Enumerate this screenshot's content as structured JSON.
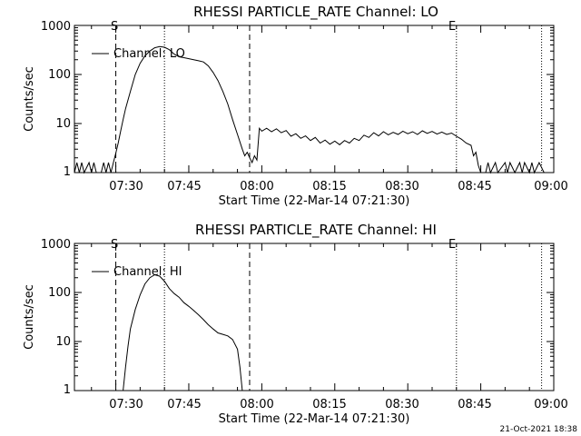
{
  "chart_data": [
    {
      "type": "line",
      "title": "RHESSI PARTICLE_RATE Channel: LO",
      "xlabel": "Start Time (22-Mar-14 07:21:30)",
      "ylabel": "Counts/sec",
      "y_scale": "log",
      "ylim": [
        1,
        1000
      ],
      "xlim": [
        "07:21:30",
        "09:00:00"
      ],
      "x_tick_labels": [
        "07:30",
        "07:45",
        "08:00",
        "08:15",
        "08:30",
        "08:45",
        "09:00"
      ],
      "y_tick_labels": [
        "1",
        "10",
        "100",
        "1000"
      ],
      "legend": {
        "label": "Channel: LO",
        "position": "top-left"
      },
      "markers": [
        {
          "time": "07:30:00",
          "style": "dashed",
          "label": "S"
        },
        {
          "time": "07:40:00",
          "style": "dotted",
          "label": ""
        },
        {
          "time": "07:57:30",
          "style": "dashed",
          "label": ""
        },
        {
          "time": "08:40:00",
          "style": "dotted",
          "label": "E"
        },
        {
          "time": "08:57:30",
          "style": "dotted",
          "label": ""
        }
      ],
      "series": [
        {
          "name": "Channel: LO",
          "points": [
            [
              "07:21:30",
              1
            ],
            [
              "07:22:00",
              1.6
            ],
            [
              "07:22:30",
              1
            ],
            [
              "07:23:00",
              1.6
            ],
            [
              "07:23:30",
              1
            ],
            [
              "07:24:30",
              1.6
            ],
            [
              "07:25:00",
              1
            ],
            [
              "07:25:30",
              1.6
            ],
            [
              "07:26:00",
              1
            ],
            [
              "07:27:00",
              1
            ],
            [
              "07:27:30",
              1.6
            ],
            [
              "07:28:00",
              1
            ],
            [
              "07:28:30",
              1.6
            ],
            [
              "07:29:00",
              1
            ],
            [
              "07:29:30",
              1.6
            ],
            [
              "07:30:00",
              2.5
            ],
            [
              "07:30:30",
              4
            ],
            [
              "07:31:00",
              7
            ],
            [
              "07:31:30",
              12
            ],
            [
              "07:32:00",
              20
            ],
            [
              "07:33:00",
              45
            ],
            [
              "07:34:00",
              100
            ],
            [
              "07:35:00",
              170
            ],
            [
              "07:36:00",
              240
            ],
            [
              "07:37:00",
              300
            ],
            [
              "07:38:00",
              350
            ],
            [
              "07:39:00",
              370
            ],
            [
              "07:40:00",
              360
            ],
            [
              "07:41:00",
              320
            ],
            [
              "07:42:00",
              260
            ],
            [
              "07:43:00",
              230
            ],
            [
              "07:44:00",
              220
            ],
            [
              "07:45:00",
              210
            ],
            [
              "07:46:00",
              200
            ],
            [
              "07:47:00",
              190
            ],
            [
              "07:48:00",
              180
            ],
            [
              "07:49:00",
              150
            ],
            [
              "07:50:00",
              110
            ],
            [
              "07:51:00",
              75
            ],
            [
              "07:52:00",
              45
            ],
            [
              "07:53:00",
              25
            ],
            [
              "07:54:00",
              12
            ],
            [
              "07:55:00",
              6
            ],
            [
              "07:56:00",
              3
            ],
            [
              "07:56:30",
              2.2
            ],
            [
              "07:57:00",
              2.6
            ],
            [
              "07:57:30",
              2
            ],
            [
              "07:58:00",
              1.6
            ],
            [
              "07:58:30",
              2.2
            ],
            [
              "07:59:00",
              1.8
            ],
            [
              "07:59:30",
              8
            ],
            [
              "08:00:00",
              7
            ],
            [
              "08:01:00",
              8
            ],
            [
              "08:02:00",
              6.8
            ],
            [
              "08:03:00",
              7.8
            ],
            [
              "08:04:00",
              6.5
            ],
            [
              "08:05:00",
              7.2
            ],
            [
              "08:06:00",
              5.5
            ],
            [
              "08:07:00",
              6.2
            ],
            [
              "08:08:00",
              5
            ],
            [
              "08:09:00",
              5.6
            ],
            [
              "08:10:00",
              4.5
            ],
            [
              "08:11:00",
              5.2
            ],
            [
              "08:12:00",
              4
            ],
            [
              "08:13:00",
              4.6
            ],
            [
              "08:14:00",
              3.8
            ],
            [
              "08:15:00",
              4.4
            ],
            [
              "08:16:00",
              3.7
            ],
            [
              "08:17:00",
              4.5
            ],
            [
              "08:18:00",
              4
            ],
            [
              "08:19:00",
              5
            ],
            [
              "08:20:00",
              4.5
            ],
            [
              "08:21:00",
              5.8
            ],
            [
              "08:22:00",
              5.2
            ],
            [
              "08:23:00",
              6.5
            ],
            [
              "08:24:00",
              5.6
            ],
            [
              "08:25:00",
              6.8
            ],
            [
              "08:26:00",
              5.9
            ],
            [
              "08:27:00",
              6.6
            ],
            [
              "08:28:00",
              6
            ],
            [
              "08:29:00",
              7
            ],
            [
              "08:30:00",
              6.2
            ],
            [
              "08:31:00",
              6.8
            ],
            [
              "08:32:00",
              6
            ],
            [
              "08:33:00",
              7.1
            ],
            [
              "08:34:00",
              6.3
            ],
            [
              "08:35:00",
              6.9
            ],
            [
              "08:36:00",
              6.1
            ],
            [
              "08:37:00",
              6.7
            ],
            [
              "08:38:00",
              6
            ],
            [
              "08:39:00",
              6.4
            ],
            [
              "08:40:00",
              5.5
            ],
            [
              "08:41:00",
              4.8
            ],
            [
              "08:42:00",
              4
            ],
            [
              "08:43:00",
              3.6
            ],
            [
              "08:43:30",
              2.2
            ],
            [
              "08:44:00",
              2.6
            ],
            [
              "08:44:30",
              1.4
            ],
            [
              "08:45:00",
              1
            ],
            [
              "08:46:00",
              1
            ],
            [
              "08:46:30",
              1.6
            ],
            [
              "08:47:00",
              1
            ],
            [
              "08:48:00",
              1.6
            ],
            [
              "08:48:30",
              1
            ],
            [
              "08:50:00",
              1.6
            ],
            [
              "08:50:30",
              1
            ],
            [
              "08:51:00",
              1.6
            ],
            [
              "08:52:00",
              1
            ],
            [
              "08:53:00",
              1.6
            ],
            [
              "08:53:30",
              1
            ],
            [
              "08:54:00",
              1.6
            ],
            [
              "08:55:00",
              1
            ],
            [
              "08:55:30",
              1.6
            ],
            [
              "08:56:00",
              1
            ],
            [
              "08:57:00",
              1.6
            ],
            [
              "08:58:00",
              1
            ]
          ]
        }
      ]
    },
    {
      "type": "line",
      "title": "RHESSI PARTICLE_RATE Channel: HI",
      "xlabel": "Start Time (22-Mar-14 07:21:30)",
      "ylabel": "Counts/sec",
      "y_scale": "log",
      "ylim": [
        1,
        1000
      ],
      "xlim": [
        "07:21:30",
        "09:00:00"
      ],
      "x_tick_labels": [
        "07:30",
        "07:45",
        "08:00",
        "08:15",
        "08:30",
        "08:45",
        "09:00"
      ],
      "y_tick_labels": [
        "1",
        "10",
        "100",
        "1000"
      ],
      "legend": {
        "label": "Channel: HI",
        "position": "top-left"
      },
      "markers": [
        {
          "time": "07:30:00",
          "style": "dashed",
          "label": "S"
        },
        {
          "time": "07:40:00",
          "style": "dotted",
          "label": ""
        },
        {
          "time": "07:57:30",
          "style": "dashed",
          "label": ""
        },
        {
          "time": "08:40:00",
          "style": "dotted",
          "label": "E"
        },
        {
          "time": "08:57:30",
          "style": "dotted",
          "label": ""
        }
      ],
      "series": [
        {
          "name": "Channel: HI",
          "points": [
            [
              "07:31:30",
              1
            ],
            [
              "07:32:00",
              3
            ],
            [
              "07:32:30",
              8
            ],
            [
              "07:33:00",
              18
            ],
            [
              "07:34:00",
              45
            ],
            [
              "07:35:00",
              90
            ],
            [
              "07:36:00",
              150
            ],
            [
              "07:37:00",
              200
            ],
            [
              "07:38:00",
              230
            ],
            [
              "07:39:00",
              215
            ],
            [
              "07:40:00",
              170
            ],
            [
              "07:41:00",
              120
            ],
            [
              "07:42:00",
              95
            ],
            [
              "07:43:00",
              80
            ],
            [
              "07:44:00",
              62
            ],
            [
              "07:45:00",
              52
            ],
            [
              "07:46:00",
              43
            ],
            [
              "07:47:00",
              35
            ],
            [
              "07:48:00",
              28
            ],
            [
              "07:49:00",
              22
            ],
            [
              "07:50:00",
              18
            ],
            [
              "07:51:00",
              15
            ],
            [
              "07:52:00",
              14
            ],
            [
              "07:53:00",
              13
            ],
            [
              "07:54:00",
              11
            ],
            [
              "07:55:00",
              7
            ],
            [
              "07:55:30",
              3
            ],
            [
              "07:56:00",
              1
            ]
          ]
        }
      ]
    }
  ],
  "footer_timestamp": "21-Oct-2021 18:38"
}
